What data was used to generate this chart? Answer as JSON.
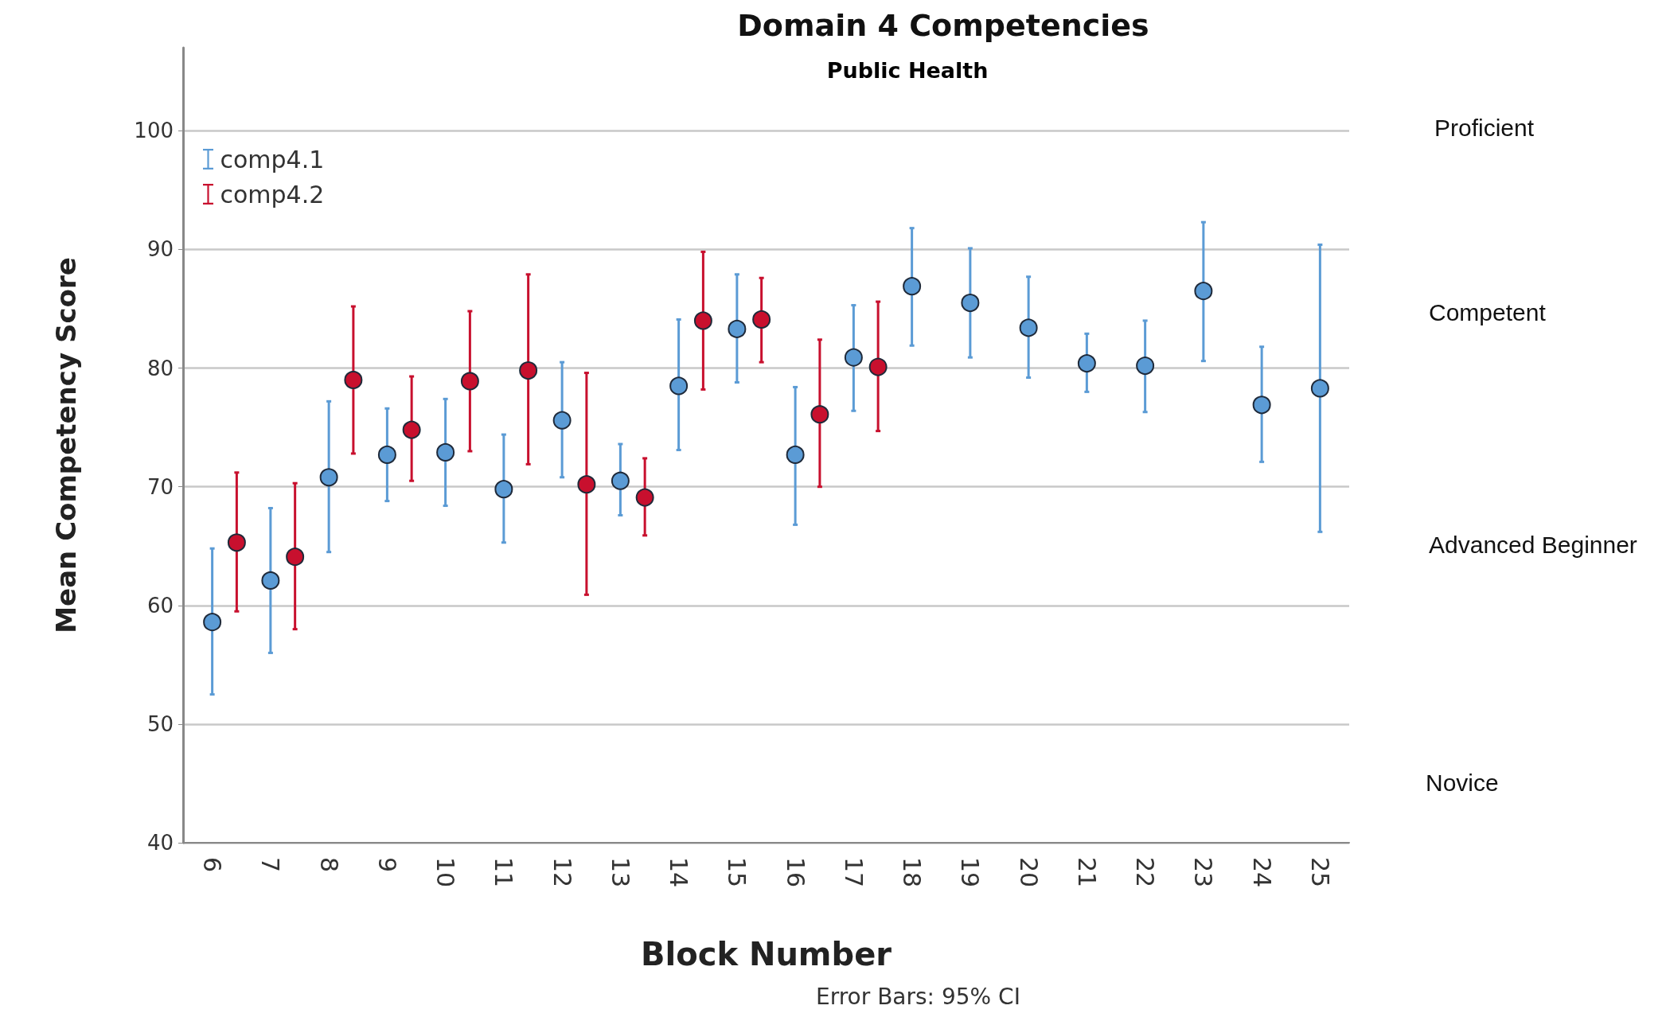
{
  "chart_data": {
    "type": "scatter",
    "title": "Domain 4 Competencies",
    "subtitle": "Public Health",
    "xlabel": "Block Number",
    "ylabel": "Mean Competency Score",
    "categories": [
      "6",
      "7",
      "8",
      "9",
      "10",
      "11",
      "12",
      "13",
      "14",
      "15",
      "16",
      "17",
      "18",
      "19",
      "20",
      "21",
      "22",
      "23",
      "24",
      "25"
    ],
    "series": [
      {
        "name": "comp4.1",
        "color": "#5b9bd5",
        "values": [
          58.6,
          62.1,
          70.8,
          72.7,
          72.9,
          69.8,
          75.6,
          70.5,
          78.5,
          83.3,
          72.7,
          80.9,
          86.9,
          85.5,
          83.4,
          80.4,
          80.2,
          86.5,
          76.9,
          78.3
        ],
        "errors": [
          [
            52.5,
            64.8
          ],
          [
            56.0,
            68.2
          ],
          [
            64.5,
            77.2
          ],
          [
            68.8,
            76.6
          ],
          [
            68.4,
            77.4
          ],
          [
            65.3,
            74.4
          ],
          [
            70.8,
            80.5
          ],
          [
            67.6,
            73.6
          ],
          [
            73.1,
            84.1
          ],
          [
            78.8,
            87.9
          ],
          [
            66.8,
            78.4
          ],
          [
            76.4,
            85.3
          ],
          [
            81.9,
            91.8
          ],
          [
            80.9,
            90.1
          ],
          [
            79.2,
            87.7
          ],
          [
            78.0,
            82.9
          ],
          [
            76.3,
            84.0
          ],
          [
            80.6,
            92.3
          ],
          [
            72.1,
            81.8
          ],
          [
            66.2,
            90.4
          ]
        ]
      },
      {
        "name": "comp4.2",
        "color": "#c8102e",
        "values": [
          65.3,
          64.1,
          79.0,
          74.8,
          78.9,
          79.8,
          70.2,
          69.1,
          84.0,
          84.1,
          76.1,
          80.1,
          null,
          null,
          null,
          null,
          null,
          null,
          null,
          null
        ],
        "errors": [
          [
            59.5,
            71.2
          ],
          [
            58.0,
            70.3
          ],
          [
            72.8,
            85.2
          ],
          [
            70.5,
            79.3
          ],
          [
            73.0,
            84.8
          ],
          [
            71.9,
            87.9
          ],
          [
            60.9,
            79.6
          ],
          [
            65.9,
            72.4
          ],
          [
            78.2,
            89.8
          ],
          [
            80.5,
            87.6
          ],
          [
            70.0,
            82.4
          ],
          [
            74.7,
            85.6
          ],
          null,
          null,
          null,
          null,
          null,
          null,
          null,
          null
        ]
      }
    ],
    "ylim": [
      40,
      107
    ],
    "yticks": [
      40,
      50,
      60,
      70,
      80,
      90,
      100
    ],
    "grid": "y",
    "legend": "top left",
    "marker": "circle",
    "annotations": [
      "Proficient",
      "Competent",
      "Advanced Beginner",
      "Novice",
      "Error Bars: 95% CI"
    ]
  }
}
